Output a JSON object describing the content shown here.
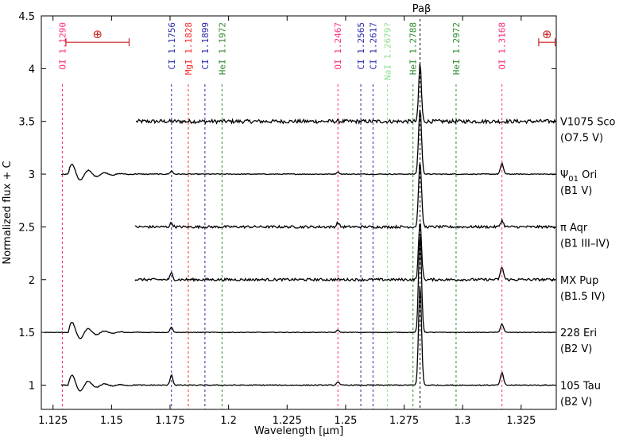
{
  "chart_data": {
    "type": "line",
    "xlabel": "Wavelength [μm]",
    "ylabel": "Normalized flux + C",
    "xlim": [
      1.12,
      1.34
    ],
    "ylim": [
      0.77,
      4.5
    ],
    "xticks": [
      "1.125",
      "1.15",
      "1.175",
      "1.2",
      "1.225",
      "1.25",
      "1.275",
      "1.3",
      "1.325"
    ],
    "xtick_values": [
      1.125,
      1.15,
      1.175,
      1.2,
      1.225,
      1.25,
      1.275,
      1.3,
      1.325
    ],
    "yticks": [
      "1",
      "1.5",
      "2",
      "2.5",
      "3",
      "3.5",
      "4",
      "4.5"
    ],
    "ytick_values": [
      1,
      1.5,
      2,
      2.5,
      3,
      3.5,
      4,
      4.5
    ],
    "top_label": "Paβ",
    "top_label_x": 1.2818,
    "colors": {
      "OI": "#ff2a7f",
      "MgI": "#ff2a2a",
      "CI": "#2a2aaa",
      "HeI": "#2e8b2e",
      "NaI": "#8fdc8f",
      "H": "#000000",
      "telluric": "#cc2222"
    },
    "lines": [
      {
        "label": "OI 1.1290",
        "x": 1.129,
        "species": "OI"
      },
      {
        "label": "CI 1.1756",
        "x": 1.1756,
        "species": "CI"
      },
      {
        "label": "MgI 1.1828",
        "x": 1.1828,
        "species": "MgI"
      },
      {
        "label": "CI 1.1899",
        "x": 1.1899,
        "species": "CI"
      },
      {
        "label": "HeI 1.1972",
        "x": 1.1972,
        "species": "HeI"
      },
      {
        "label": "OI 1.2467",
        "x": 1.2467,
        "species": "OI"
      },
      {
        "label": "CI 1.2565",
        "x": 1.2565,
        "species": "CI"
      },
      {
        "label": "CI 1.2617",
        "x": 1.2617,
        "species": "CI"
      },
      {
        "label": "NaI 1.2679?",
        "x": 1.2679,
        "species": "NaI"
      },
      {
        "label": "HeI 1.2788",
        "x": 1.2788,
        "species": "HeI"
      },
      {
        "label": "",
        "x": 1.2818,
        "species": "H"
      },
      {
        "label": "HeI 1.2972",
        "x": 1.2972,
        "species": "HeI"
      },
      {
        "label": "OI 1.3168",
        "x": 1.3168,
        "species": "OI"
      }
    ],
    "telluric_bands": [
      {
        "symbol": "⊕",
        "x0": 1.1305,
        "x1": 1.1575,
        "y": 4.25
      },
      {
        "symbol": "⊕",
        "x0": 1.3325,
        "x1": 1.3395,
        "y": 4.25
      }
    ],
    "series": [
      {
        "name": "V1075 Sco",
        "spectral_type": "(O7.5 V)",
        "offset": 3.5,
        "x_start": 1.1605,
        "noise": 0.018,
        "features": [
          {
            "x": 1.2818,
            "amp": 0.55,
            "w": 0.0008
          }
        ]
      },
      {
        "name": "Ψ01 Ori",
        "name_main": "Ψ",
        "name_sub": "01",
        "name_rest": " Ori",
        "spectral_type": "(B1 V)",
        "offset": 3.0,
        "x_start": 1.1285,
        "noise": 0.004,
        "features": [
          {
            "x": 1.2818,
            "amp": 0.62,
            "w": 0.0009
          },
          {
            "x": 1.3168,
            "amp": 0.1,
            "w": 0.0009
          },
          {
            "x": 1.1756,
            "amp": 0.03,
            "w": 0.0008
          },
          {
            "x": 1.2467,
            "amp": 0.02,
            "w": 0.0008
          }
        ]
      },
      {
        "name": "π Aqr",
        "spectral_type": "(B1 III–IV)",
        "offset": 2.5,
        "x_start": 1.16,
        "noise": 0.012,
        "features": [
          {
            "x": 1.2818,
            "amp": 0.62,
            "w": 0.0009
          },
          {
            "x": 1.3168,
            "amp": 0.06,
            "w": 0.0009
          },
          {
            "x": 1.1756,
            "amp": 0.04,
            "w": 0.0008
          },
          {
            "x": 1.2467,
            "amp": 0.04,
            "w": 0.0008
          }
        ]
      },
      {
        "name": "MX Pup",
        "spectral_type": "(B1.5 IV)",
        "offset": 2.0,
        "x_start": 1.16,
        "noise": 0.012,
        "features": [
          {
            "x": 1.2818,
            "amp": 0.55,
            "w": 0.0009
          },
          {
            "x": 1.3168,
            "amp": 0.12,
            "w": 0.0009
          },
          {
            "x": 1.1756,
            "amp": 0.06,
            "w": 0.0008
          }
        ]
      },
      {
        "name": "228 Eri",
        "spectral_type": "(B2 V)",
        "offset": 1.5,
        "x_start": 1.1215,
        "noise": 0.003,
        "features": [
          {
            "x": 1.2818,
            "amp": 0.92,
            "w": 0.0009
          },
          {
            "x": 1.3168,
            "amp": 0.08,
            "w": 0.0009
          },
          {
            "x": 1.1756,
            "amp": 0.05,
            "w": 0.0008
          },
          {
            "x": 1.2467,
            "amp": 0.02,
            "w": 0.0008
          }
        ]
      },
      {
        "name": "105 Tau",
        "spectral_type": "(B2 V)",
        "offset": 1.0,
        "x_start": 1.1285,
        "noise": 0.004,
        "features": [
          {
            "x": 1.2818,
            "amp": 0.95,
            "w": 0.0009
          },
          {
            "x": 1.3168,
            "amp": 0.12,
            "w": 0.0009
          },
          {
            "x": 1.1756,
            "amp": 0.1,
            "w": 0.0008
          },
          {
            "x": 1.2467,
            "amp": 0.03,
            "w": 0.0008
          }
        ]
      }
    ]
  }
}
